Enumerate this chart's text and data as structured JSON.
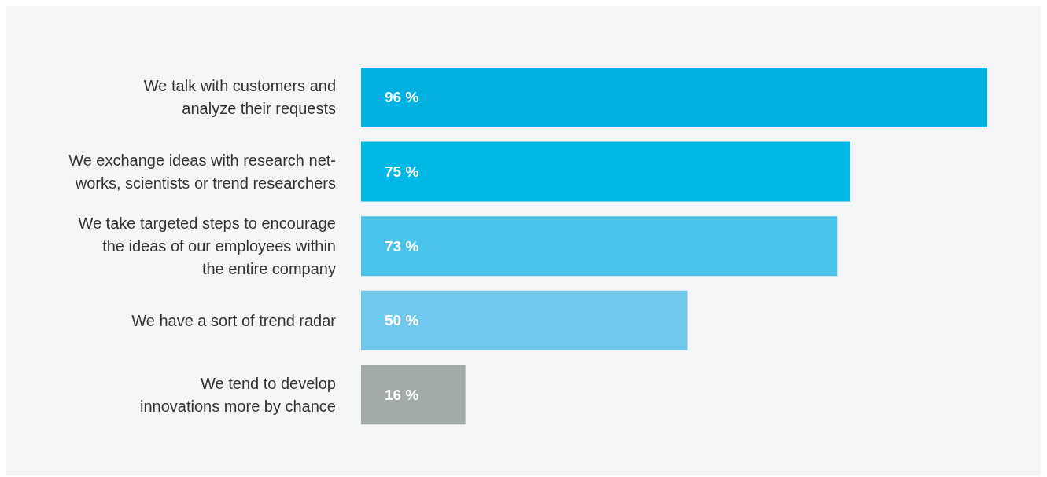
{
  "chart_data": {
    "type": "bar",
    "orientation": "horizontal",
    "categories": [
      "We talk with customers and\nanalyze their requests",
      "We exchange ideas with research net-\nworks, scientists or trend researchers",
      "We take targeted steps to encourage\nthe ideas of our employees within\nthe entire company",
      "We have a sort of trend radar",
      "We tend to develop\ninnovations more by chance"
    ],
    "values": [
      96,
      75,
      73,
      50,
      16
    ],
    "value_labels": [
      "96 %",
      "75 %",
      "73 %",
      "50 %",
      "16 %"
    ],
    "colors": [
      "#00b1e1",
      "#00b8e5",
      "#4ac3ea",
      "#70c8ec",
      "#a2abaa"
    ]
  }
}
